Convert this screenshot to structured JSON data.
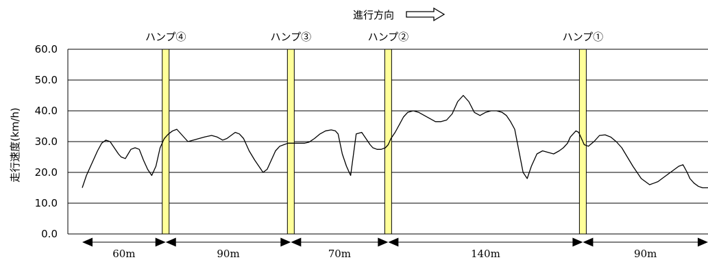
{
  "chart_data": {
    "type": "line",
    "direction_label": "進行方向",
    "ylabel": "走行速度(km/h)",
    "ylim": [
      0,
      60
    ],
    "yticks": [
      "60.0",
      "50.0",
      "40.0",
      "30.0",
      "20.0",
      "10.0",
      "0.0"
    ],
    "x_unit": "m",
    "x_total": 450,
    "humps": [
      {
        "label": "ハンプ④",
        "x": 60
      },
      {
        "label": "ハンプ③",
        "x": 150
      },
      {
        "label": "ハンプ②",
        "x": 220
      },
      {
        "label": "ハンプ①",
        "x": 360
      }
    ],
    "intervals": [
      {
        "label": "60m",
        "from": 0,
        "to": 60
      },
      {
        "label": "90m",
        "from": 60,
        "to": 150
      },
      {
        "label": "70m",
        "from": 150,
        "to": 220
      },
      {
        "label": "140m",
        "from": 220,
        "to": 360
      },
      {
        "label": "90m",
        "from": 360,
        "to": 450
      }
    ],
    "series": [
      {
        "x": [
          0,
          3,
          7,
          11,
          14,
          17,
          20,
          23,
          26,
          28,
          31,
          33,
          35,
          38,
          41,
          44,
          47,
          50,
          53,
          56,
          59,
          62,
          65,
          68,
          72,
          76,
          80,
          84,
          88,
          93,
          97,
          101,
          104,
          107,
          110,
          113,
          116,
          120,
          124,
          127,
          130,
          133,
          136,
          139,
          142,
          145,
          148,
          150,
          153,
          157,
          160,
          163,
          167,
          171,
          175,
          179,
          182,
          184,
          187,
          190,
          193,
          197,
          201,
          204,
          207,
          209,
          212,
          215,
          218,
          220,
          222,
          225,
          228,
          231,
          234,
          238,
          242,
          246,
          250,
          254,
          258,
          262,
          266,
          270,
          274,
          278,
          282,
          286,
          290,
          294,
          298,
          302,
          305,
          308,
          311,
          314,
          317,
          320,
          323,
          327,
          331,
          335,
          339,
          343,
          346,
          349,
          351,
          353,
          355,
          357,
          359,
          361,
          364,
          368,
          372,
          376,
          380,
          384,
          388,
          392,
          396,
          399,
          402,
          405,
          408,
          411,
          414,
          417,
          420,
          423,
          426,
          429,
          432,
          435,
          437,
          440,
          443,
          446,
          450
        ],
        "values": [
          15,
          19,
          23,
          27,
          29.5,
          30.5,
          30,
          28,
          26,
          25,
          24.5,
          26,
          27.5,
          28,
          27.5,
          24,
          21,
          19,
          22,
          28,
          31,
          32.5,
          33.5,
          34,
          32,
          30,
          30.5,
          31,
          31.5,
          32,
          31.5,
          30.5,
          31,
          32,
          33,
          32.5,
          31,
          27,
          24,
          22,
          20,
          21,
          24,
          27,
          28.5,
          29,
          29.5,
          29.5,
          29.5,
          29.5,
          29.5,
          29.8,
          31,
          32.5,
          33.5,
          33.8,
          33.5,
          32.5,
          26,
          22,
          19,
          32.5,
          33,
          31,
          29,
          28,
          27.5,
          27.5,
          28,
          29,
          31,
          33,
          35.5,
          38,
          39.5,
          40,
          39.5,
          38.5,
          37.5,
          36.5,
          36.5,
          37,
          39,
          43,
          45,
          43,
          39.5,
          38.5,
          39.5,
          40,
          40,
          39.5,
          38.5,
          36.5,
          34,
          27,
          20,
          18,
          22,
          26,
          27,
          26.5,
          26,
          27,
          28,
          29.5,
          31.5,
          32.5,
          33.5,
          33,
          31,
          29,
          28.5,
          30,
          32,
          32.2,
          31.5,
          30,
          28,
          25,
          22,
          20,
          18,
          17,
          16,
          16.5,
          17,
          18,
          19,
          20,
          21,
          22,
          22.5,
          20,
          18,
          16.5,
          15.5,
          15,
          15
        ]
      }
    ],
    "grid": true,
    "legend": "none"
  }
}
